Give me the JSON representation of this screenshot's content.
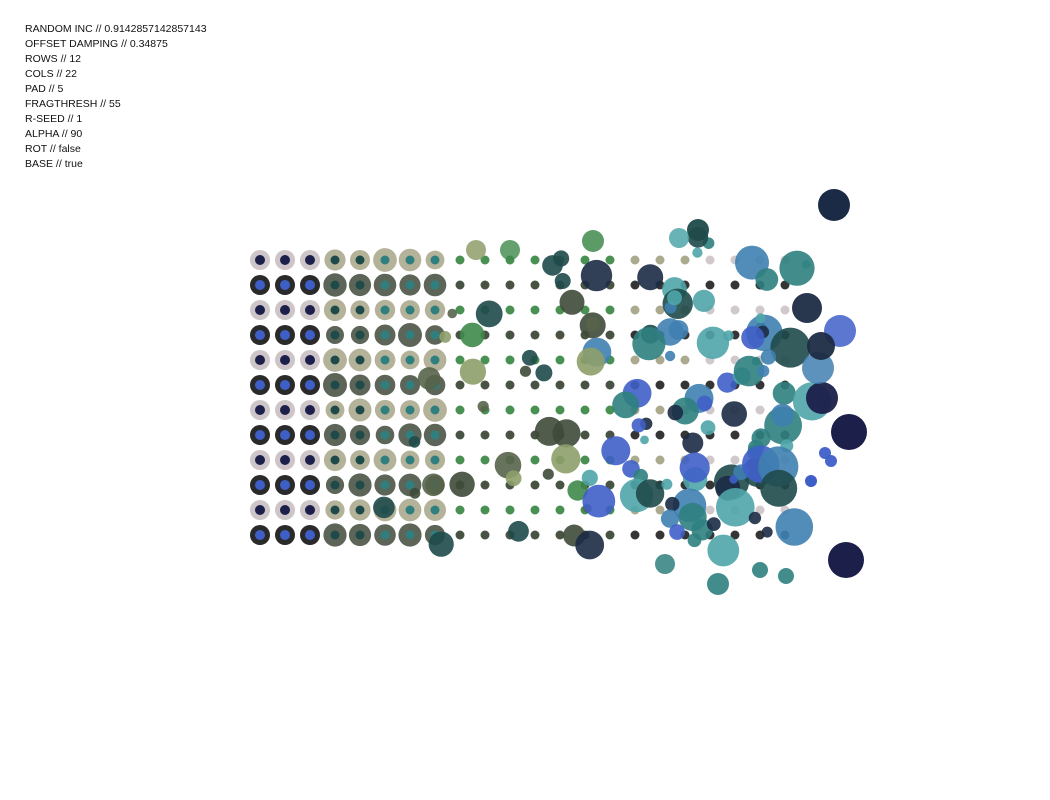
{
  "params": [
    {
      "label": "RANDOM INC",
      "value": "0.9142857142857143"
    },
    {
      "label": "OFFSET DAMPING",
      "value": "0.34875"
    },
    {
      "label": "ROWS",
      "value": "12"
    },
    {
      "label": "COLS",
      "value": "22"
    },
    {
      "label": "PAD",
      "value": "5"
    },
    {
      "label": "FRAGTHRESH",
      "value": "55"
    },
    {
      "label": "R-SEED",
      "value": "1"
    },
    {
      "label": "ALPHA",
      "value": "90"
    },
    {
      "label": "ROT",
      "value": "false"
    },
    {
      "label": "BASE",
      "value": "true"
    }
  ],
  "separator": " // ",
  "palette": {
    "background": "#ffffff",
    "light_ring": "#cdc5c8",
    "dark_ring": "#2a2a2a",
    "navy": "#1b1f4a",
    "deep_blue": "#1c2b45",
    "blue": "#3f5fc8",
    "teal": "#2f7f7f",
    "dark_teal": "#1f4a4a",
    "sage": "#8e9e6a",
    "khaki": "#a8a588",
    "olive": "#56644a",
    "dark_olive": "#3f4a3a",
    "green": "#3f8a4a",
    "steel_blue": "#3f7fb0",
    "cyan": "#4fa5a8"
  }
}
